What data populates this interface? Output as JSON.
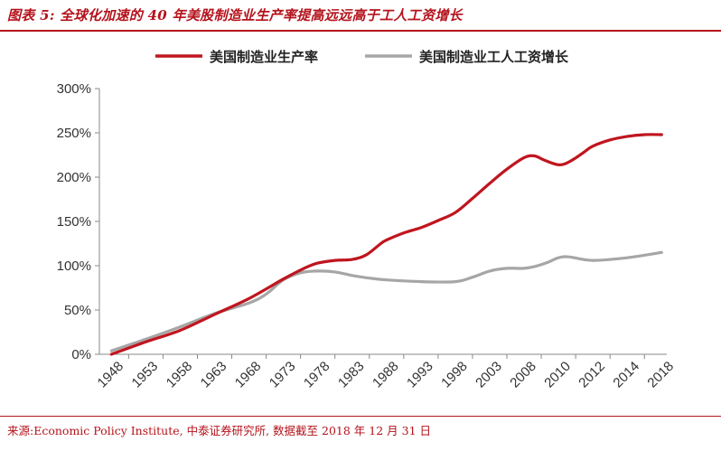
{
  "figure": {
    "title": "图表 5:  全球化加速的 40 年美股制造业生产率提高远远高于工人工资增长",
    "source": "来源:Economic Policy Institute, 中泰证券研究所, 数据截至 2018 年 12 月 31 日"
  },
  "colors": {
    "accent": "#b5121b",
    "productivity": "#c0151f",
    "wages": "#a6a6a6",
    "axis": "#888888"
  },
  "chart_data": {
    "type": "line",
    "title": "",
    "xlabel": "",
    "ylabel": "",
    "ylim": [
      0,
      300
    ],
    "y_ticks": [
      0,
      50,
      100,
      150,
      200,
      250,
      300
    ],
    "y_tick_labels": [
      "0%",
      "50%",
      "100%",
      "150%",
      "200%",
      "250%",
      "300%"
    ],
    "x_tick_labels": [
      "1948",
      "1953",
      "1958",
      "1963",
      "1968",
      "1973",
      "1978",
      "1983",
      "1988",
      "1993",
      "1998",
      "2003",
      "2008",
      "2010",
      "2012",
      "2014",
      "2018"
    ],
    "grid": false,
    "legend_position": "top",
    "series": [
      {
        "name": "美国制造业生产率",
        "color": "#c0151f",
        "points": [
          [
            0,
            0
          ],
          [
            1,
            14
          ],
          [
            2,
            27
          ],
          [
            3,
            45
          ],
          [
            4,
            63
          ],
          [
            5,
            85
          ],
          [
            5.6,
            97
          ],
          [
            6,
            103
          ],
          [
            6.5,
            106
          ],
          [
            7,
            107
          ],
          [
            7.4,
            112
          ],
          [
            7.8,
            124
          ],
          [
            8,
            129
          ],
          [
            8.5,
            137
          ],
          [
            9,
            143
          ],
          [
            9.5,
            151
          ],
          [
            10,
            160
          ],
          [
            10.5,
            176
          ],
          [
            11,
            193
          ],
          [
            11.5,
            209
          ],
          [
            12,
            222
          ],
          [
            12.3,
            224
          ],
          [
            12.6,
            219
          ],
          [
            13,
            214
          ],
          [
            13.3,
            217
          ],
          [
            13.7,
            227
          ],
          [
            14,
            235
          ],
          [
            14.5,
            242
          ],
          [
            15,
            246
          ],
          [
            15.5,
            248
          ],
          [
            16,
            248
          ]
        ]
      },
      {
        "name": "美国制造业工人工资增长",
        "color": "#a6a6a6",
        "points": [
          [
            0,
            4
          ],
          [
            1,
            17
          ],
          [
            2,
            31
          ],
          [
            3,
            46
          ],
          [
            4,
            58
          ],
          [
            4.5,
            68
          ],
          [
            5,
            84
          ],
          [
            5.5,
            92
          ],
          [
            6,
            94
          ],
          [
            6.5,
            93
          ],
          [
            7,
            89
          ],
          [
            7.5,
            86
          ],
          [
            8,
            84
          ],
          [
            9,
            82
          ],
          [
            10,
            82
          ],
          [
            10.5,
            87
          ],
          [
            11,
            94
          ],
          [
            11.5,
            97
          ],
          [
            12,
            97
          ],
          [
            12.3,
            99
          ],
          [
            12.7,
            104
          ],
          [
            13,
            109
          ],
          [
            13.3,
            110
          ],
          [
            14,
            106
          ],
          [
            15,
            109
          ],
          [
            16,
            115
          ]
        ]
      }
    ]
  }
}
